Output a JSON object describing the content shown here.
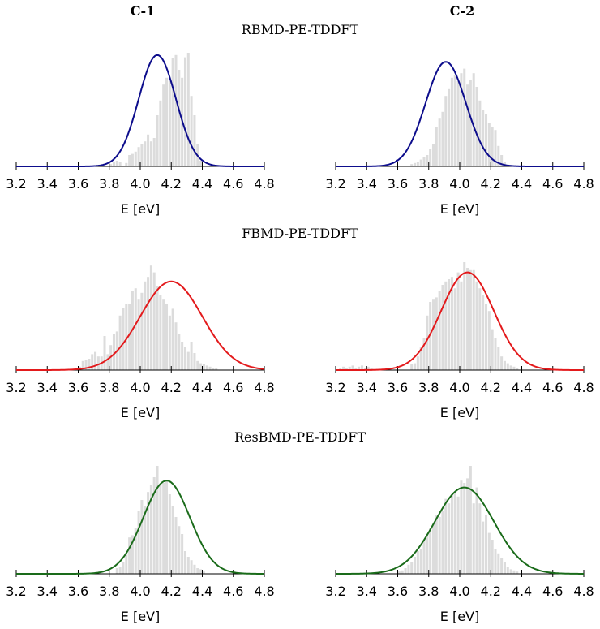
{
  "figure": {
    "column_titles": [
      "C-1",
      "C-2"
    ],
    "row_titles": [
      "RBMD-PE-TDDFT",
      "FBMD-PE-TDDFT",
      "ResBMD-PE-TDDFT"
    ]
  },
  "colors": {
    "rbmd": "#0d0d8c",
    "fbmd": "#e31a1c",
    "resbmd": "#1a6b1a",
    "bars": "#dcdcdc"
  },
  "chart_data": [
    {
      "id": "rbmd-c1",
      "type": "bar",
      "title": "RBMD-PE-TDDFT",
      "column": "C-1",
      "color": "#0d0d8c",
      "xlabel": "E [eV]",
      "ylabel": "",
      "xlim": [
        3.2,
        4.8
      ],
      "xticks": [
        "3.2",
        "3.4",
        "3.6",
        "3.8",
        "4.0",
        "4.2",
        "4.4",
        "4.6",
        "4.8"
      ],
      "bin_start": 3.2,
      "bin_width": 0.02,
      "values": [
        0,
        0,
        0,
        0,
        0,
        0,
        0,
        0,
        0,
        0,
        0,
        0,
        0,
        0,
        0,
        0,
        0,
        0,
        0,
        0,
        0,
        0,
        0,
        0,
        0,
        0,
        0,
        0,
        0,
        0,
        0.02,
        0.04,
        0.05,
        0.04,
        0,
        0.03,
        0.1,
        0.11,
        0.13,
        0.17,
        0.2,
        0.22,
        0.28,
        0.22,
        0.25,
        0.45,
        0.58,
        0.72,
        0.78,
        0.75,
        0.95,
        0.98,
        0.85,
        0.78,
        0.96,
        1.0,
        0.62,
        0.45,
        0.2,
        0.05,
        0,
        0,
        0,
        0,
        0,
        0,
        0,
        0,
        0,
        0,
        0,
        0,
        0,
        0,
        0,
        0,
        0,
        0,
        0,
        0
      ],
      "fit": {
        "mean": 4.11,
        "sd": 0.12,
        "peak": 0.98
      }
    },
    {
      "id": "rbmd-c2",
      "type": "bar",
      "title": "RBMD-PE-TDDFT",
      "column": "C-2",
      "color": "#0d0d8c",
      "xlabel": "E [eV]",
      "ylabel": "",
      "xlim": [
        3.2,
        4.8
      ],
      "xticks": [
        "3.2",
        "3.4",
        "3.6",
        "3.8",
        "4.0",
        "4.2",
        "4.4",
        "4.6",
        "4.8"
      ],
      "bin_start": 3.2,
      "bin_width": 0.02,
      "values": [
        0,
        0,
        0,
        0,
        0,
        0,
        0,
        0,
        0,
        0,
        0,
        0,
        0,
        0,
        0,
        0,
        0,
        0,
        0,
        0,
        0,
        0,
        0,
        0,
        0.02,
        0.03,
        0.04,
        0.06,
        0.08,
        0.1,
        0.15,
        0.2,
        0.35,
        0.42,
        0.48,
        0.62,
        0.68,
        0.78,
        0.8,
        0.75,
        0.82,
        0.86,
        0.72,
        0.76,
        0.82,
        0.7,
        0.58,
        0.5,
        0.46,
        0.38,
        0.35,
        0.32,
        0.18,
        0.1,
        0.04,
        0,
        0,
        0,
        0,
        0,
        0,
        0,
        0,
        0,
        0,
        0,
        0,
        0,
        0,
        0,
        0,
        0,
        0,
        0,
        0,
        0,
        0,
        0,
        0,
        0
      ],
      "fit": {
        "mean": 3.91,
        "sd": 0.13,
        "peak": 0.92
      }
    },
    {
      "id": "fbmd-c1",
      "type": "bar",
      "title": "FBMD-PE-TDDFT",
      "column": "C-1",
      "color": "#e31a1c",
      "xlabel": "E [eV]",
      "ylabel": "",
      "xlim": [
        3.2,
        4.8
      ],
      "xticks": [
        "3.2",
        "3.4",
        "3.6",
        "3.8",
        "4.0",
        "4.2",
        "4.4",
        "4.6",
        "4.8"
      ],
      "bin_start": 3.2,
      "bin_width": 0.02,
      "values": [
        0,
        0,
        0,
        0,
        0,
        0,
        0,
        0,
        0,
        0,
        0,
        0,
        0,
        0,
        0,
        0,
        0,
        0,
        0,
        0.02,
        0.03,
        0.08,
        0.09,
        0.1,
        0.14,
        0.16,
        0.12,
        0.12,
        0.3,
        0.14,
        0.22,
        0.32,
        0.34,
        0.48,
        0.55,
        0.58,
        0.58,
        0.7,
        0.72,
        0.62,
        0.68,
        0.78,
        0.82,
        0.92,
        0.86,
        0.74,
        0.66,
        0.62,
        0.58,
        0.48,
        0.54,
        0.42,
        0.32,
        0.25,
        0.2,
        0.16,
        0.25,
        0.15,
        0.08,
        0.06,
        0.05,
        0.04,
        0.03,
        0.02,
        0.02,
        0,
        0,
        0,
        0,
        0,
        0,
        0,
        0,
        0,
        0,
        0,
        0,
        0,
        0,
        0
      ],
      "fit": {
        "mean": 4.2,
        "sd": 0.2,
        "peak": 0.78
      }
    },
    {
      "id": "fbmd-c2",
      "type": "bar",
      "title": "FBMD-PE-TDDFT",
      "column": "C-2",
      "color": "#e31a1c",
      "xlabel": "E [eV]",
      "ylabel": "",
      "xlim": [
        3.2,
        4.8
      ],
      "xticks": [
        "3.2",
        "3.4",
        "3.6",
        "3.8",
        "4.0",
        "4.2",
        "4.4",
        "4.6",
        "4.8"
      ],
      "bin_start": 3.2,
      "bin_width": 0.02,
      "values": [
        0,
        0.02,
        0.03,
        0.02,
        0.03,
        0.04,
        0.02,
        0.03,
        0.04,
        0.02,
        0.03,
        0.02,
        0,
        0,
        0,
        0,
        0,
        0,
        0,
        0,
        0,
        0,
        0,
        0,
        0.05,
        0.06,
        0.12,
        0.2,
        0.28,
        0.48,
        0.6,
        0.62,
        0.64,
        0.7,
        0.75,
        0.78,
        0.8,
        0.82,
        0.72,
        0.86,
        0.78,
        0.95,
        0.9,
        0.88,
        0.88,
        0.78,
        0.72,
        0.66,
        0.58,
        0.52,
        0.36,
        0.28,
        0.2,
        0.12,
        0.08,
        0.06,
        0.04,
        0.03,
        0.02,
        0,
        0,
        0,
        0,
        0,
        0,
        0,
        0,
        0,
        0,
        0,
        0,
        0,
        0,
        0,
        0,
        0,
        0,
        0,
        0,
        0
      ],
      "fit": {
        "mean": 4.05,
        "sd": 0.17,
        "peak": 0.86
      }
    },
    {
      "id": "resbmd-c1",
      "type": "bar",
      "title": "ResBMD-PE-TDDFT",
      "column": "C-1",
      "color": "#1a6b1a",
      "xlabel": "E [eV]",
      "ylabel": "",
      "xlim": [
        3.2,
        4.8
      ],
      "xticks": [
        "3.2",
        "3.4",
        "3.6",
        "3.8",
        "4.0",
        "4.2",
        "4.4",
        "4.6",
        "4.8"
      ],
      "bin_start": 3.2,
      "bin_width": 0.02,
      "values": [
        0,
        0,
        0,
        0,
        0,
        0,
        0,
        0,
        0,
        0,
        0,
        0,
        0,
        0,
        0,
        0,
        0,
        0,
        0,
        0,
        0,
        0,
        0,
        0,
        0,
        0,
        0,
        0,
        0,
        0,
        0,
        0,
        0.05,
        0.06,
        0.1,
        0.18,
        0.32,
        0.34,
        0.4,
        0.55,
        0.65,
        0.6,
        0.72,
        0.78,
        0.85,
        0.95,
        0.78,
        0.8,
        0.82,
        0.7,
        0.6,
        0.5,
        0.42,
        0.35,
        0.2,
        0.15,
        0.12,
        0.08,
        0.05,
        0.04,
        0.02,
        0,
        0,
        0,
        0,
        0,
        0,
        0,
        0,
        0,
        0,
        0,
        0,
        0,
        0,
        0,
        0,
        0,
        0,
        0
      ],
      "fit": {
        "mean": 4.17,
        "sd": 0.15,
        "peak": 0.82
      }
    },
    {
      "id": "resbmd-c2",
      "type": "bar",
      "title": "ResBMD-PE-TDDFT",
      "column": "C-2",
      "color": "#1a6b1a",
      "xlabel": "E [eV]",
      "ylabel": "",
      "xlim": [
        3.2,
        4.8
      ],
      "xticks": [
        "3.2",
        "3.4",
        "3.6",
        "3.8",
        "4.0",
        "4.2",
        "4.4",
        "4.6",
        "4.8"
      ],
      "bin_start": 3.2,
      "bin_width": 0.02,
      "values": [
        0,
        0,
        0,
        0,
        0,
        0,
        0,
        0,
        0,
        0,
        0,
        0,
        0,
        0,
        0,
        0,
        0,
        0,
        0,
        0,
        0.02,
        0.03,
        0.05,
        0.08,
        0.1,
        0.15,
        0.2,
        0.22,
        0.3,
        0.35,
        0.4,
        0.44,
        0.52,
        0.5,
        0.55,
        0.66,
        0.62,
        0.7,
        0.72,
        0.68,
        0.82,
        0.8,
        0.84,
        0.95,
        0.62,
        0.76,
        0.62,
        0.46,
        0.52,
        0.36,
        0.3,
        0.22,
        0.18,
        0.14,
        0.1,
        0.06,
        0.04,
        0.03,
        0.02,
        0,
        0,
        0,
        0,
        0,
        0,
        0,
        0,
        0,
        0,
        0,
        0,
        0,
        0,
        0,
        0,
        0,
        0,
        0,
        0,
        0
      ],
      "fit": {
        "mean": 4.03,
        "sd": 0.19,
        "peak": 0.76
      }
    }
  ]
}
